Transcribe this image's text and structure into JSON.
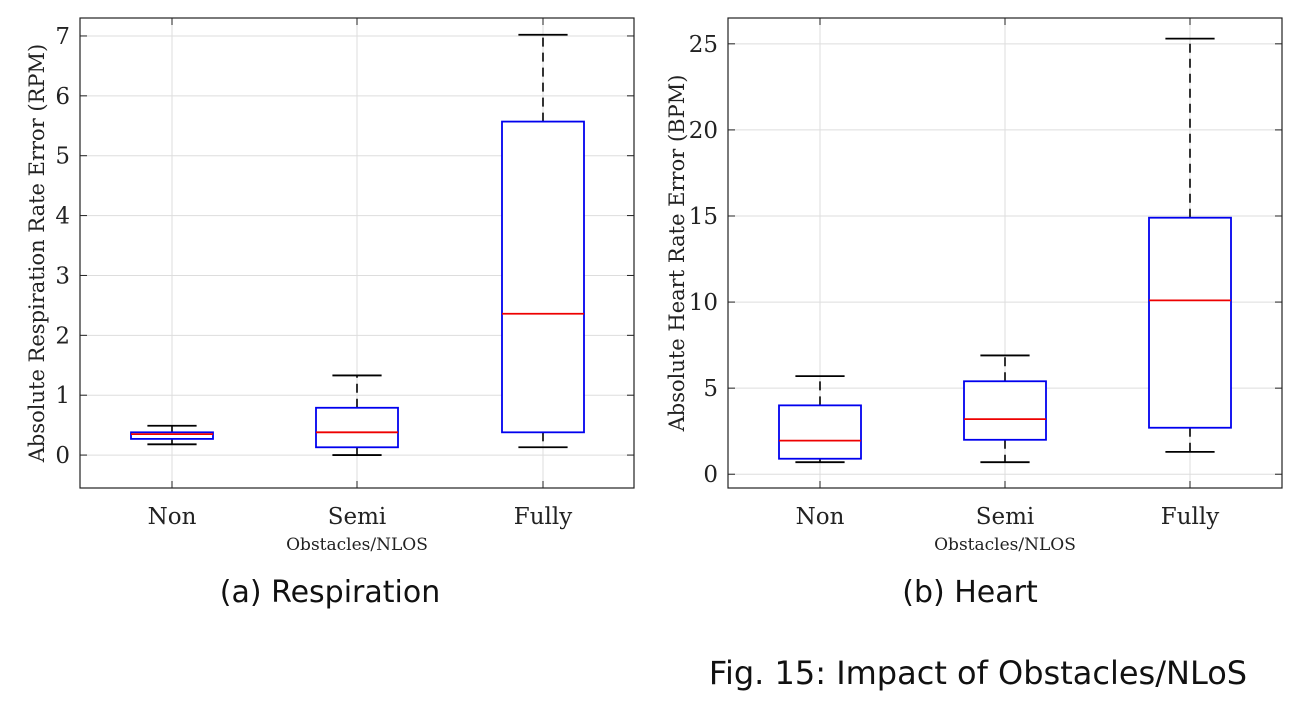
{
  "chart_data": [
    {
      "type": "box",
      "subcaption": "(a) Respiration",
      "xlabel": "Obstacles/NLOS",
      "ylabel": "Absolute Respiration Rate Error (RPM)",
      "categories": [
        "Non",
        "Semi",
        "Fully"
      ],
      "ylim": [
        -0.55,
        7.3
      ],
      "yticks": [
        0,
        1,
        2,
        3,
        4,
        5,
        6,
        7
      ],
      "grid": true,
      "boxes": [
        {
          "min": 0.18,
          "q1": 0.27,
          "median": 0.35,
          "q3": 0.38,
          "max": 0.49
        },
        {
          "min": 0.0,
          "q1": 0.13,
          "median": 0.38,
          "q3": 0.79,
          "max": 1.33
        },
        {
          "min": 0.13,
          "q1": 0.38,
          "median": 2.36,
          "q3": 5.57,
          "max": 7.02
        }
      ]
    },
    {
      "type": "box",
      "subcaption": "(b) Heart",
      "xlabel": "Obstacles/NLOS",
      "ylabel": "Absolute Heart Rate Error (BPM)",
      "categories": [
        "Non",
        "Semi",
        "Fully"
      ],
      "ylim": [
        -0.8,
        26.5
      ],
      "yticks": [
        0,
        5,
        10,
        15,
        20,
        25
      ],
      "grid": true,
      "boxes": [
        {
          "min": 0.7,
          "q1": 0.9,
          "median": 1.95,
          "q3": 4.0,
          "max": 5.7
        },
        {
          "min": 0.7,
          "q1": 2.0,
          "median": 3.2,
          "q3": 5.4,
          "max": 6.9
        },
        {
          "min": 1.3,
          "q1": 2.7,
          "median": 10.1,
          "q3": 14.9,
          "max": 25.3
        }
      ]
    }
  ],
  "caption": "Fig. 15: Impact of Obstacles/NLoS",
  "colors": {
    "box": "#0000ee",
    "median": "#ee0000",
    "whisker": "#000000",
    "grid": "#dddddd",
    "axis": "#222222"
  }
}
